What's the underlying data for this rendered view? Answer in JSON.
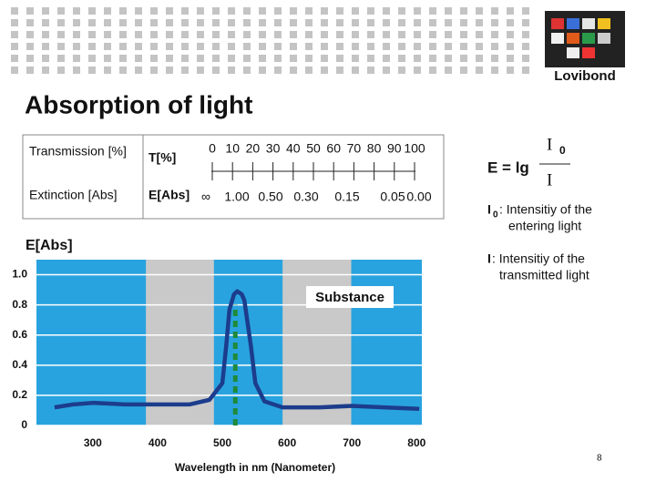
{
  "slide": {
    "title": "Absorption of light",
    "logo": "Lovibond",
    "page_number": "8"
  },
  "scale_table": {
    "row_labels": [
      "Transmission [%]",
      "Extinction [Abs]"
    ],
    "t_label": "T[%]",
    "e_label": "E[Abs]",
    "t_values": [
      "0",
      "10",
      "20",
      "30",
      "40",
      "50",
      "60",
      "70",
      "80",
      "90",
      "100"
    ],
    "e_values": [
      "∞",
      "1.00",
      "0.50",
      "0.30",
      "0.15",
      "0.05",
      "0.00"
    ]
  },
  "formula": {
    "lhs": "E = lg",
    "numerator": "I",
    "numerator_sub": "0",
    "denominator": "I"
  },
  "notes": [
    {
      "symbol": "I",
      "sub": "0",
      "lines": [
        ": Intensitiy of the",
        "entering light"
      ]
    },
    {
      "symbol": "I",
      "lines": [
        ": Intensitiy of the",
        "transmitted light"
      ]
    }
  ],
  "chart_data": {
    "type": "line",
    "y_title": "E[Abs]",
    "x_label": "Wavelength in nm (Nanometer)",
    "annotation": "Substance",
    "background_color": "#29a3df",
    "band_color": "#c9c9c9",
    "bands": [
      [
        382,
        487
      ],
      [
        593,
        699
      ]
    ],
    "marker_line": {
      "x": 520,
      "y": 0.8,
      "color": "#1e8a3a"
    },
    "x": [
      241,
      270,
      300,
      350,
      400,
      450,
      480,
      500,
      506,
      511,
      518,
      523,
      530,
      534,
      544,
      551,
      565,
      593,
      650,
      700,
      750,
      804
    ],
    "series": [
      {
        "name": "Substance",
        "color": "#1c3c8c",
        "values": [
          0.12,
          0.14,
          0.15,
          0.14,
          0.14,
          0.14,
          0.17,
          0.28,
          0.53,
          0.77,
          0.87,
          0.89,
          0.87,
          0.83,
          0.53,
          0.28,
          0.16,
          0.12,
          0.12,
          0.13,
          0.12,
          0.11
        ]
      }
    ],
    "xlim": [
      213,
      808
    ],
    "xticks": [
      300,
      400,
      500,
      600,
      700,
      800
    ],
    "ylim": [
      0,
      1.1
    ],
    "yticks": [
      0,
      0.2,
      0.4,
      0.6,
      0.8,
      {
        "value": 1,
        "label": "1.0"
      }
    ],
    "grid": true
  }
}
